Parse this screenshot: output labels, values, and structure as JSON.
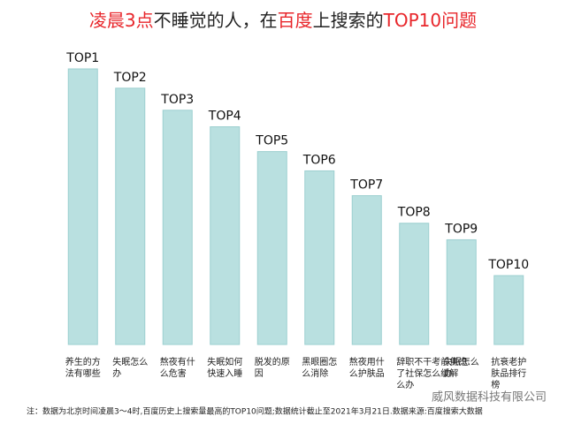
{
  "chart_data": {
    "type": "bar",
    "title": [
      "凌晨3点",
      "不睡觉的人，在",
      "百度",
      "上搜索的",
      "TOP10问题"
    ],
    "title_colors": [
      "#e8262b",
      "#222222",
      "#e8262b",
      "#222222",
      "#e8262b"
    ],
    "rank_labels": [
      "TOP1",
      "TOP2",
      "TOP3",
      "TOP4",
      "TOP5",
      "TOP6",
      "TOP7",
      "TOP8",
      "TOP9",
      "TOP10"
    ],
    "categories": [
      [
        "养生的方",
        "法有哪些"
      ],
      [
        "失眠怎么",
        "办"
      ],
      [
        "熬夜有什",
        "么危害"
      ],
      [
        "失眠如何",
        "快速入睡"
      ],
      [
        "脱发的原",
        "因"
      ],
      [
        "黑眼圈怎",
        "么消除"
      ],
      [
        "熬夜用什",
        "么护肤品"
      ],
      [
        "辞职不干考前焦虑",
        "了社保怎么缓解",
        "么办"
      ],
      [
        "失眠怎么",
        "办"
      ],
      [
        "抗衰老护",
        "肤品排行",
        "榜"
      ]
    ],
    "values": [
      100,
      93,
      85,
      79,
      70,
      63,
      54,
      44,
      38,
      25
    ],
    "color": "#b9e0e0",
    "note": "注：数据为北京时间凌晨3～4时,百度历史上搜索量最高的TOP10问题;数据统计截止至2021年3月21日.数据来源:百度搜索大数据",
    "watermark": "威风数据科技有限公司"
  }
}
